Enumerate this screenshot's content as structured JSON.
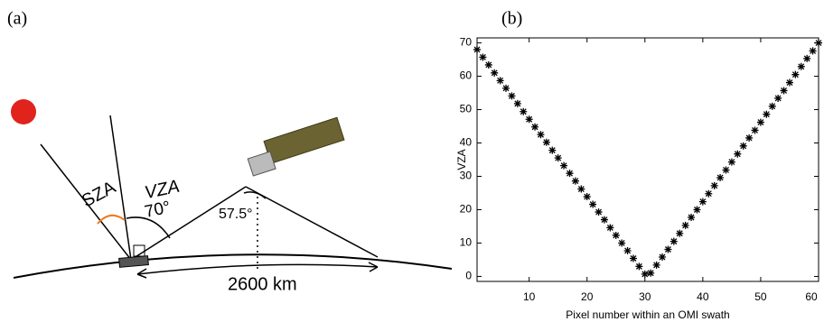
{
  "panel_a": {
    "label": "(a)",
    "sza": "SZA",
    "vza": "VZA",
    "vza_angle": "70°",
    "view_angle": "57.5°",
    "swath": "2600 km"
  },
  "chart_data": {
    "type": "scatter",
    "label": "(b)",
    "x_label": "Pixel number within an OMI swath",
    "y_label": "VZA",
    "color": "#000000",
    "x": [
      1,
      2,
      3,
      4,
      5,
      6,
      7,
      8,
      9,
      10,
      11,
      12,
      13,
      14,
      15,
      16,
      17,
      18,
      19,
      20,
      21,
      22,
      23,
      24,
      25,
      26,
      27,
      28,
      29,
      30,
      31,
      32,
      33,
      34,
      35,
      36,
      37,
      38,
      39,
      40,
      41,
      42,
      43,
      44,
      45,
      46,
      47,
      48,
      49,
      50,
      51,
      52,
      53,
      54,
      55,
      56,
      57,
      58,
      59,
      60
    ],
    "values": [
      68.0,
      65.7,
      63.4,
      61.0,
      58.7,
      56.4,
      54.1,
      51.8,
      49.4,
      47.1,
      44.8,
      42.5,
      40.2,
      37.8,
      35.5,
      33.2,
      30.9,
      28.6,
      26.2,
      23.9,
      21.6,
      19.3,
      17.0,
      14.6,
      12.3,
      10.0,
      7.7,
      5.4,
      3.0,
      0.7,
      1.0,
      3.4,
      5.8,
      8.1,
      10.5,
      12.9,
      15.3,
      17.7,
      20.0,
      22.4,
      24.8,
      27.2,
      29.6,
      31.9,
      34.3,
      36.7,
      39.1,
      41.5,
      43.8,
      46.2,
      48.6,
      51.0,
      53.4,
      55.7,
      58.1,
      60.5,
      62.9,
      65.3,
      67.6,
      70.0
    ],
    "xlim": [
      1,
      60
    ],
    "ylim": [
      -1.5,
      71.5
    ],
    "xticks": [
      10,
      20,
      30,
      40,
      50,
      60
    ],
    "yticks": [
      0,
      10,
      20,
      30,
      40,
      50,
      60,
      70
    ]
  }
}
